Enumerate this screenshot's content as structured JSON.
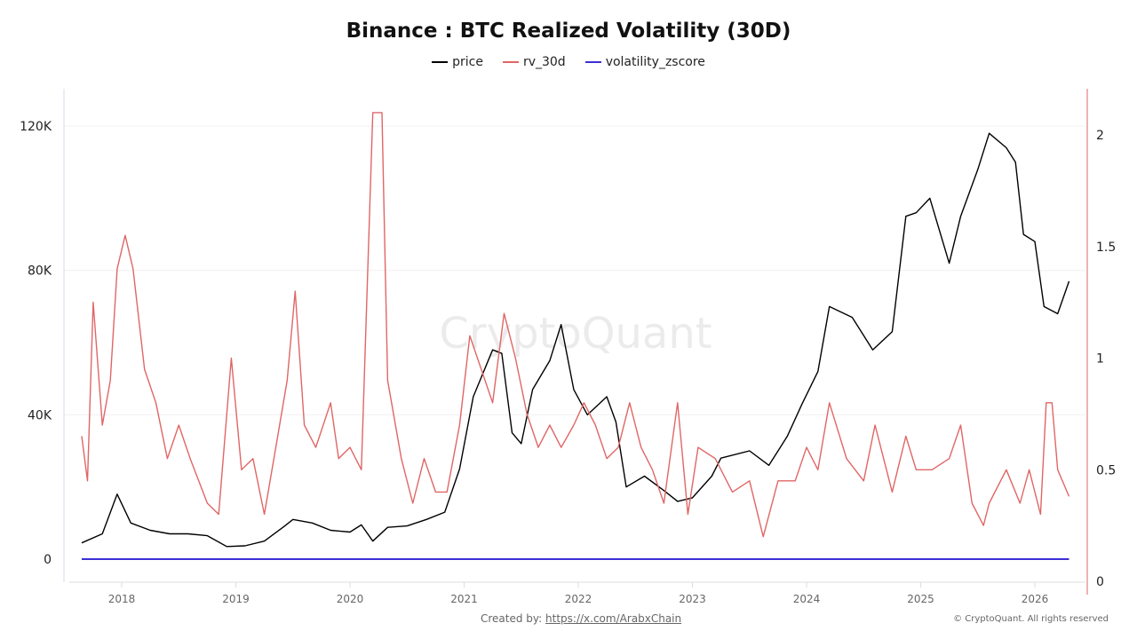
{
  "chart_data": {
    "type": "line",
    "title": "Binance : BTC Realized Volatility (30D)",
    "x_ticks": [
      "2018",
      "2019",
      "2020",
      "2021",
      "2022",
      "2023",
      "2024",
      "2025",
      "2026"
    ],
    "y_left_ticks": [
      {
        "v": 0,
        "label": "0"
      },
      {
        "v": 40000,
        "label": "40K"
      },
      {
        "v": 80000,
        "label": "80K"
      },
      {
        "v": 120000,
        "label": "120K"
      }
    ],
    "y_right_ticks": [
      {
        "v": 0,
        "label": "0"
      },
      {
        "v": 0.5,
        "label": "0.5"
      },
      {
        "v": 1,
        "label": "1"
      },
      {
        "v": 1.5,
        "label": "1.5"
      },
      {
        "v": 2,
        "label": "2"
      }
    ],
    "y_left_range": [
      -6500,
      130000
    ],
    "y_right_range": [
      0,
      2.2
    ],
    "grid": true,
    "legend_placement": "top",
    "series": [
      {
        "name": "price",
        "axis": "left",
        "color": "#000000",
        "x": [
          2017.65,
          2017.83,
          2017.96,
          2018.08,
          2018.25,
          2018.42,
          2018.58,
          2018.75,
          2018.92,
          2019.08,
          2019.25,
          2019.42,
          2019.5,
          2019.67,
          2019.83,
          2020.0,
          2020.1,
          2020.2,
          2020.33,
          2020.5,
          2020.67,
          2020.83,
          2020.96,
          2021.08,
          2021.25,
          2021.33,
          2021.42,
          2021.5,
          2021.6,
          2021.75,
          2021.85,
          2021.96,
          2022.08,
          2022.25,
          2022.33,
          2022.42,
          2022.58,
          2022.75,
          2022.87,
          2023.0,
          2023.17,
          2023.25,
          2023.5,
          2023.67,
          2023.83,
          2023.96,
          2024.1,
          2024.2,
          2024.4,
          2024.58,
          2024.75,
          2024.87,
          2024.96,
          2025.08,
          2025.25,
          2025.35,
          2025.5,
          2025.6,
          2025.75,
          2025.83,
          2025.9,
          2026.0,
          2026.08,
          2026.2,
          2026.3
        ],
        "y": [
          4500,
          7000,
          18000,
          10000,
          8000,
          7000,
          7000,
          6500,
          3500,
          3700,
          5000,
          9000,
          11000,
          10000,
          8000,
          7500,
          9500,
          5000,
          8800,
          9200,
          11000,
          13000,
          25000,
          45000,
          58000,
          57000,
          35000,
          32000,
          47000,
          55000,
          65000,
          47000,
          40000,
          45000,
          38000,
          20000,
          23000,
          19000,
          16000,
          17000,
          23000,
          28000,
          30000,
          26000,
          34000,
          43000,
          52000,
          70000,
          67000,
          58000,
          63000,
          95000,
          96000,
          100000,
          82000,
          95000,
          108000,
          118000,
          114000,
          110000,
          90000,
          88000,
          70000,
          68000,
          77000
        ]
      },
      {
        "name": "rv_30d",
        "axis": "right",
        "color": "#e06666",
        "x": [
          2017.65,
          2017.7,
          2017.75,
          2017.83,
          2017.9,
          2017.96,
          2018.03,
          2018.1,
          2018.2,
          2018.3,
          2018.4,
          2018.5,
          2018.6,
          2018.75,
          2018.85,
          2018.96,
          2019.05,
          2019.15,
          2019.25,
          2019.35,
          2019.45,
          2019.52,
          2019.6,
          2019.7,
          2019.83,
          2019.9,
          2020.0,
          2020.1,
          2020.2,
          2020.28,
          2020.33,
          2020.45,
          2020.55,
          2020.65,
          2020.75,
          2020.85,
          2020.96,
          2021.05,
          2021.15,
          2021.25,
          2021.35,
          2021.45,
          2021.55,
          2021.65,
          2021.75,
          2021.85,
          2021.96,
          2022.05,
          2022.15,
          2022.25,
          2022.35,
          2022.45,
          2022.55,
          2022.65,
          2022.75,
          2022.87,
          2022.96,
          2023.05,
          2023.2,
          2023.35,
          2023.5,
          2023.62,
          2023.75,
          2023.9,
          2024.0,
          2024.1,
          2024.2,
          2024.35,
          2024.5,
          2024.6,
          2024.75,
          2024.87,
          2024.96,
          2025.1,
          2025.25,
          2025.35,
          2025.45,
          2025.55,
          2025.6,
          2025.75,
          2025.87,
          2025.95,
          2026.05,
          2026.1,
          2026.15,
          2026.2,
          2026.3
        ],
        "y": [
          0.65,
          0.45,
          1.25,
          0.7,
          0.9,
          1.4,
          1.55,
          1.4,
          0.95,
          0.8,
          0.55,
          0.7,
          0.55,
          0.35,
          0.3,
          1.0,
          0.5,
          0.55,
          0.3,
          0.6,
          0.9,
          1.3,
          0.7,
          0.6,
          0.8,
          0.55,
          0.6,
          0.5,
          2.1,
          2.1,
          0.9,
          0.55,
          0.35,
          0.55,
          0.4,
          0.4,
          0.7,
          1.1,
          0.95,
          0.8,
          1.2,
          1.0,
          0.75,
          0.6,
          0.7,
          0.6,
          0.7,
          0.8,
          0.7,
          0.55,
          0.6,
          0.8,
          0.6,
          0.5,
          0.35,
          0.8,
          0.3,
          0.6,
          0.55,
          0.4,
          0.45,
          0.2,
          0.45,
          0.45,
          0.6,
          0.5,
          0.8,
          0.55,
          0.45,
          0.7,
          0.4,
          0.65,
          0.5,
          0.5,
          0.55,
          0.7,
          0.35,
          0.25,
          0.35,
          0.5,
          0.35,
          0.5,
          0.3,
          0.8,
          0.8,
          0.5,
          0.38
        ]
      },
      {
        "name": "volatility_zscore",
        "axis": "left",
        "color": "#3b2fd6",
        "x": [
          2017.65,
          2026.3
        ],
        "y": [
          0,
          0
        ]
      }
    ]
  },
  "watermark": "CryptoQuant",
  "footer": {
    "created_by": "Created by:",
    "link": "https://x.com/ArabxChain",
    "copyright": "© CryptoQuant. All rights reserved"
  }
}
